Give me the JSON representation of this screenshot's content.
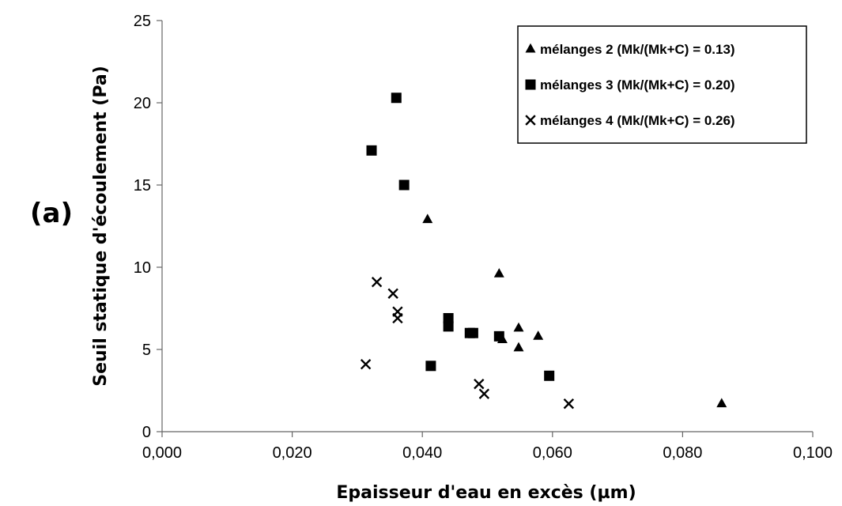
{
  "panel_label": "(a)",
  "chart_data": {
    "type": "scatter",
    "xlabel": "Epaisseur d'eau en excès (µm)",
    "ylabel": "Seuil statique d'écoulement (Pa)",
    "xlim": [
      0,
      0.1
    ],
    "ylim": [
      0,
      25
    ],
    "x_ticks": [
      0,
      0.02,
      0.04,
      0.06,
      0.08,
      0.1
    ],
    "x_tick_labels": [
      "0,000",
      "0,020",
      "0,040",
      "0,060",
      "0,080",
      "0,100"
    ],
    "y_ticks": [
      0,
      5,
      10,
      15,
      20,
      25
    ],
    "y_tick_labels": [
      "0",
      "5",
      "10",
      "15",
      "20",
      "25"
    ],
    "grid": false,
    "legend_position": "top-right",
    "series": [
      {
        "name": "mélanges 2 (Mk/(Mk+C) = 0.13)",
        "marker": "triangle",
        "color": "#000000",
        "points": [
          [
            0.0408,
            12.9
          ],
          [
            0.0518,
            9.6
          ],
          [
            0.0548,
            6.3
          ],
          [
            0.0578,
            5.8
          ],
          [
            0.0523,
            5.6
          ],
          [
            0.0548,
            5.1
          ],
          [
            0.086,
            1.7
          ]
        ]
      },
      {
        "name": "mélanges 3 (Mk/(Mk+C) = 0.20)",
        "marker": "square",
        "color": "#000000",
        "points": [
          [
            0.036,
            20.3
          ],
          [
            0.0322,
            17.1
          ],
          [
            0.0372,
            15.0
          ],
          [
            0.044,
            6.9
          ],
          [
            0.044,
            6.4
          ],
          [
            0.0473,
            6.0
          ],
          [
            0.0478,
            6.0
          ],
          [
            0.0518,
            5.8
          ],
          [
            0.0413,
            4.0
          ],
          [
            0.0595,
            3.4
          ]
        ]
      },
      {
        "name": "mélanges 4 (Mk/(Mk+C) = 0.26)",
        "marker": "cross",
        "color": "#000000",
        "points": [
          [
            0.033,
            9.1
          ],
          [
            0.0355,
            8.4
          ],
          [
            0.0362,
            7.3
          ],
          [
            0.0362,
            6.9
          ],
          [
            0.0313,
            4.1
          ],
          [
            0.0487,
            2.9
          ],
          [
            0.0495,
            2.3
          ],
          [
            0.0625,
            1.7
          ]
        ]
      }
    ]
  }
}
